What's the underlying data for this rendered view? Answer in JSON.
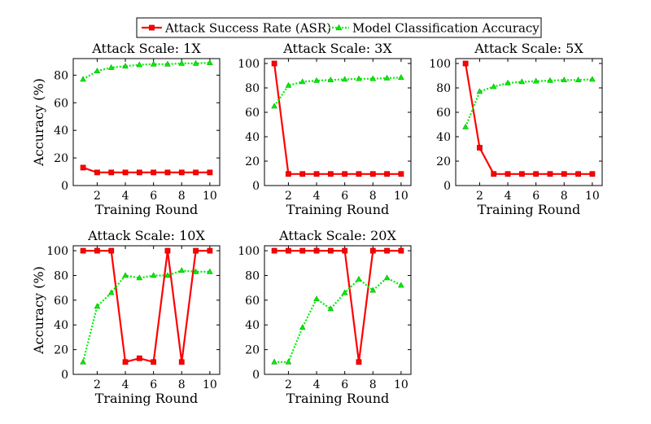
{
  "legend": {
    "entries": [
      {
        "label": "Attack Success Rate (ASR)",
        "color": "#ff0000",
        "marker": "square",
        "style": "solid"
      },
      {
        "label": "Model Classification Accuracy",
        "color": "#00ee00",
        "marker": "triangle",
        "style": "dotted"
      }
    ],
    "placement": "top-center"
  },
  "chart_data": [
    {
      "type": "line",
      "title": "Attack Scale: 1X",
      "xlabel": "Training Round",
      "ylabel": "Accuracy (%)",
      "x": [
        1,
        2,
        3,
        4,
        5,
        6,
        7,
        8,
        9,
        10
      ],
      "xticks": [
        2,
        4,
        6,
        8,
        10
      ],
      "yticks": [
        0,
        20,
        40,
        60,
        80
      ],
      "xlim": [
        0.3,
        10.7
      ],
      "ylim": [
        0,
        92
      ],
      "series": [
        {
          "name": "Attack Success Rate (ASR)",
          "values": [
            13,
            9.5,
            9.5,
            9.5,
            9.5,
            9.5,
            9.5,
            9.5,
            9.5,
            9.5
          ]
        },
        {
          "name": "Model Classification Accuracy",
          "values": [
            77,
            83,
            85.5,
            86.5,
            87.5,
            88,
            88,
            88.5,
            88.5,
            89
          ]
        }
      ]
    },
    {
      "type": "line",
      "title": "Attack Scale: 3X",
      "xlabel": "Training Round",
      "ylabel": "",
      "x": [
        1,
        2,
        3,
        4,
        5,
        6,
        7,
        8,
        9,
        10
      ],
      "xticks": [
        2,
        4,
        6,
        8,
        10
      ],
      "yticks": [
        0,
        20,
        40,
        60,
        80,
        100
      ],
      "xlim": [
        0.3,
        10.7
      ],
      "ylim": [
        0,
        104
      ],
      "series": [
        {
          "name": "Attack Success Rate (ASR)",
          "values": [
            100,
            9.5,
            9.5,
            9.5,
            9.5,
            9.5,
            9.5,
            9.5,
            9.5,
            9.5
          ]
        },
        {
          "name": "Model Classification Accuracy",
          "values": [
            65,
            82,
            85,
            86,
            86.5,
            87,
            87.5,
            87.5,
            88,
            88.5
          ]
        }
      ]
    },
    {
      "type": "line",
      "title": "Attack Scale: 5X",
      "xlabel": "Training Round",
      "ylabel": "",
      "x": [
        1,
        2,
        3,
        4,
        5,
        6,
        7,
        8,
        9,
        10
      ],
      "xticks": [
        2,
        4,
        6,
        8,
        10
      ],
      "yticks": [
        0,
        20,
        40,
        60,
        80,
        100
      ],
      "xlim": [
        0.3,
        10.7
      ],
      "ylim": [
        0,
        104
      ],
      "series": [
        {
          "name": "Attack Success Rate (ASR)",
          "values": [
            100,
            31,
            9.5,
            9.5,
            9.5,
            9.5,
            9.5,
            9.5,
            9.5,
            9.5
          ]
        },
        {
          "name": "Model Classification Accuracy",
          "values": [
            48,
            77,
            81,
            84,
            85,
            85.5,
            86,
            86.5,
            86.5,
            87
          ]
        }
      ]
    },
    {
      "type": "line",
      "title": "Attack Scale: 10X",
      "xlabel": "Training Round",
      "ylabel": "Accuracy (%)",
      "x": [
        1,
        2,
        3,
        4,
        5,
        6,
        7,
        8,
        9,
        10
      ],
      "xticks": [
        2,
        4,
        6,
        8,
        10
      ],
      "yticks": [
        0,
        20,
        40,
        60,
        80,
        100
      ],
      "xlim": [
        0.3,
        10.7
      ],
      "ylim": [
        0,
        104
      ],
      "series": [
        {
          "name": "Attack Success Rate (ASR)",
          "values": [
            100,
            100,
            100,
            10,
            13,
            10,
            100,
            10,
            100,
            100
          ]
        },
        {
          "name": "Model Classification Accuracy",
          "values": [
            10,
            55,
            66,
            80,
            78,
            80,
            80,
            84,
            83,
            83
          ]
        }
      ]
    },
    {
      "type": "line",
      "title": "Attack Scale: 20X",
      "xlabel": "Training Round",
      "ylabel": "",
      "x": [
        1,
        2,
        3,
        4,
        5,
        6,
        7,
        8,
        9,
        10
      ],
      "xticks": [
        2,
        4,
        6,
        8,
        10
      ],
      "yticks": [
        0,
        20,
        40,
        60,
        80,
        100
      ],
      "xlim": [
        0.3,
        10.7
      ],
      "ylim": [
        0,
        104
      ],
      "series": [
        {
          "name": "Attack Success Rate (ASR)",
          "values": [
            100,
            100,
            100,
            100,
            100,
            100,
            10,
            100,
            100,
            100
          ]
        },
        {
          "name": "Model Classification Accuracy",
          "values": [
            10,
            10,
            38,
            61,
            53,
            66,
            77,
            68,
            78,
            72
          ]
        }
      ]
    }
  ]
}
